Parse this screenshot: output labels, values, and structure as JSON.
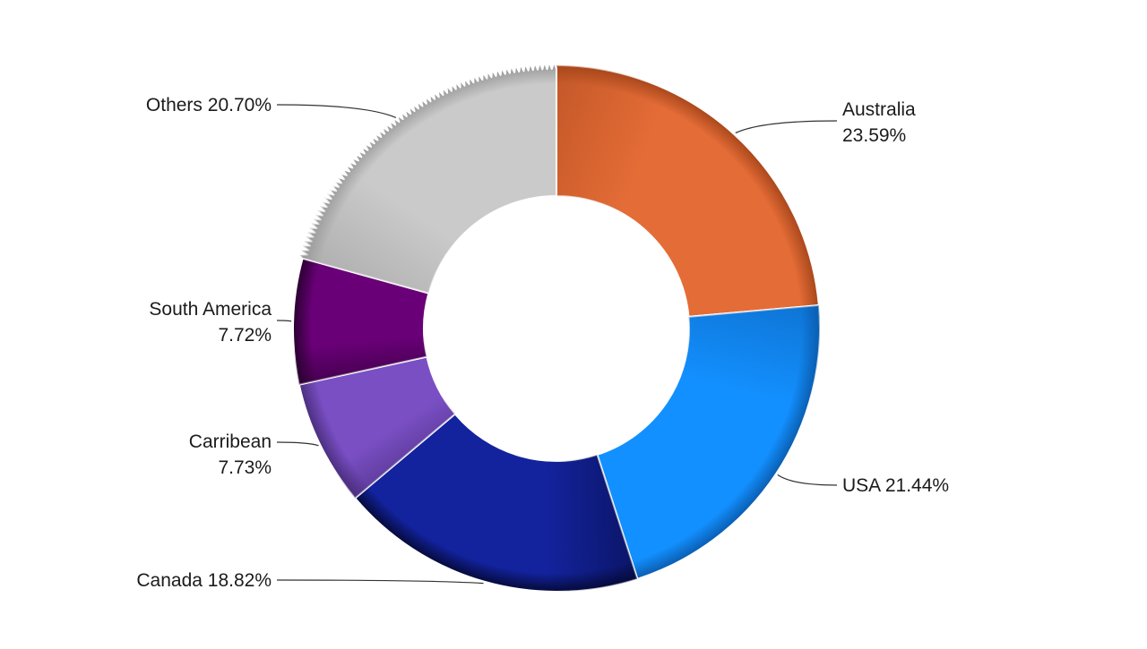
{
  "chart_data": {
    "type": "pie",
    "variant": "doughnut",
    "title": "",
    "slices": [
      {
        "name": "Australia",
        "label_text": [
          "Australia",
          "23.59%"
        ],
        "value": 23.59,
        "color": "#E46C37",
        "dark_color": "#A8471B"
      },
      {
        "name": "USA",
        "label_text": [
          "USA 21.44%"
        ],
        "value": 21.44,
        "color": "#1390FF",
        "dark_color": "#0A5DB0"
      },
      {
        "name": "Canada",
        "label_text": [
          "Canada 18.82%"
        ],
        "value": 18.82,
        "color": "#13239E",
        "dark_color": "#050A3A"
      },
      {
        "name": "Carribean",
        "label_text": [
          "Carribean",
          "7.73%"
        ],
        "value": 7.73,
        "color": "#7A4FC4",
        "dark_color": "#4A2E7E"
      },
      {
        "name": "South America",
        "label_text": [
          "South America",
          "7.72%"
        ],
        "value": 7.72,
        "color": "#6A0078",
        "dark_color": "#2A0030"
      },
      {
        "name": "Others",
        "label_text": [
          "Others 20.70%"
        ],
        "value": 20.7,
        "color": "#CACACA",
        "dark_color": "#9A9A9A",
        "style": "jagged"
      }
    ],
    "legend": "none",
    "data_labels": "outside with leader lines"
  }
}
